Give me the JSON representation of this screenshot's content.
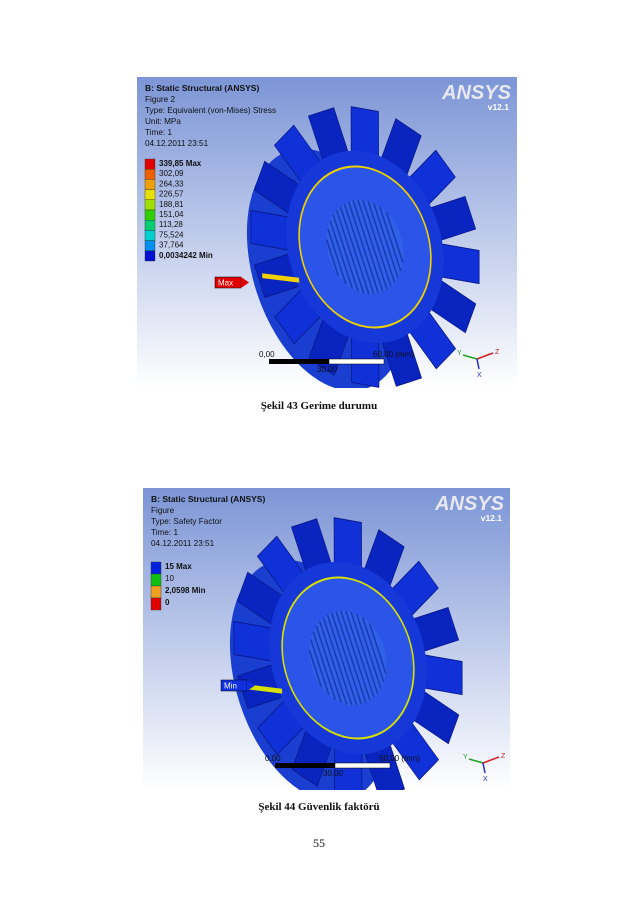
{
  "figures": [
    {
      "header": {
        "title": "B: Static Structural (ANSYS)",
        "lines": [
          "Figure 2",
          "Type: Equivalent (von-Mises) Stress",
          "Unit: MPa",
          "Time: 1",
          "04.12.2011 23:51"
        ]
      },
      "legend": [
        "339,85 Max",
        "302,09",
        "264,33",
        "226,57",
        "188,81",
        "151,04",
        "113,28",
        "75,524",
        "37,764",
        "0,0034242 Min"
      ],
      "probe": "Max",
      "scale": {
        "start": "0,00",
        "end": "60,00 (mm)",
        "mid": "30,00"
      },
      "logo": {
        "brand": "ANSYS",
        "version": "v12.1"
      },
      "triad": [
        "Y",
        "Z",
        "X"
      ],
      "caption": "Şekil 43 Gerime durumu"
    },
    {
      "header": {
        "title": "B: Static Structural (ANSYS)",
        "lines": [
          "Figure",
          "Type: Safety Factor",
          "Time: 1",
          "04.12.2011 23:51"
        ]
      },
      "legend": [
        "15 Max",
        "10",
        "2,0598 Min",
        "0"
      ],
      "probe": "Min",
      "scale": {
        "start": "0,00",
        "end": "60,00 (mm)",
        "mid": "30,00"
      },
      "logo": {
        "brand": "ANSYS",
        "version": "v12.1"
      },
      "triad": [
        "Y",
        "Z",
        "X"
      ],
      "caption": "Şekil 44 Güvenlik faktörü"
    }
  ],
  "page_number": "55"
}
